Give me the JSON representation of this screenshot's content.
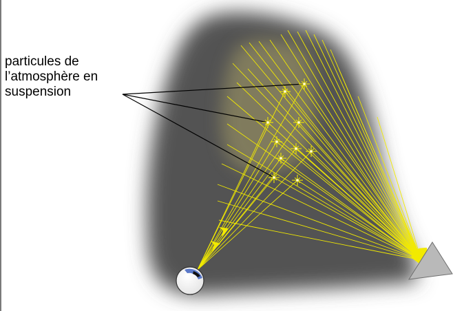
{
  "label": {
    "line1": "particules de",
    "line2": "l’atmosphère en",
    "line3": "suspension"
  },
  "colors": {
    "background": "#ffffff",
    "haze_dark": "#505050",
    "haze_glow": "#8c8660",
    "ray": "#f2ea00",
    "sun": "#f2ea00",
    "projector": "#b8b8b8",
    "eye_iris": "#5a78c8",
    "leader_line": "#000000"
  },
  "icons": {
    "light_source": "projector-icon",
    "observer": "eye-icon",
    "particle": "sparkle-icon",
    "direction": "arrowhead-icon"
  }
}
